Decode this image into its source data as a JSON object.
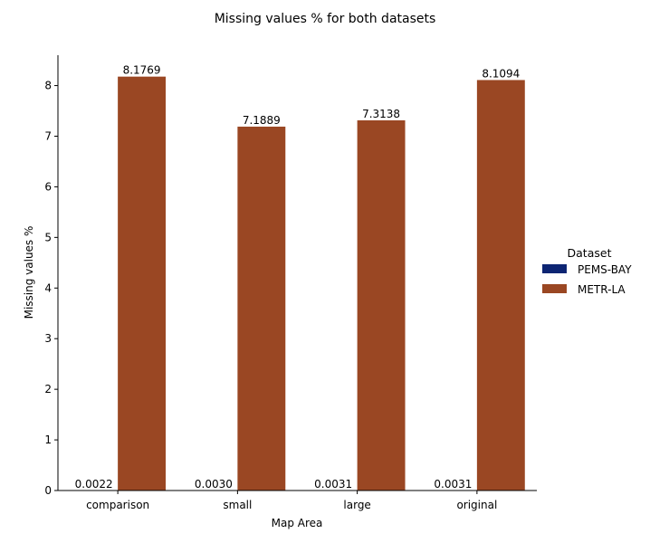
{
  "chart_data": {
    "type": "bar",
    "title": "Missing values % for both datasets",
    "xlabel": "Map Area",
    "ylabel": "Missing values %",
    "categories": [
      "comparison",
      "small",
      "large",
      "original"
    ],
    "series": [
      {
        "name": "PEMS-BAY",
        "color": "#0d2573",
        "values": [
          0.0022,
          0.003,
          0.0031,
          0.0031
        ],
        "labels": [
          "0.0022",
          "0.0030",
          "0.0031",
          "0.0031"
        ]
      },
      {
        "name": "METR-LA",
        "color": "#9a4723",
        "values": [
          8.1769,
          7.1889,
          7.3138,
          8.1094
        ],
        "labels": [
          "8.1769",
          "7.1889",
          "7.3138",
          "8.1094"
        ]
      }
    ],
    "ylim": [
      0,
      8.6
    ],
    "yticks": [
      0,
      1,
      2,
      3,
      4,
      5,
      6,
      7,
      8
    ],
    "grid": false,
    "legend": {
      "title": "Dataset",
      "placement": "right"
    }
  }
}
